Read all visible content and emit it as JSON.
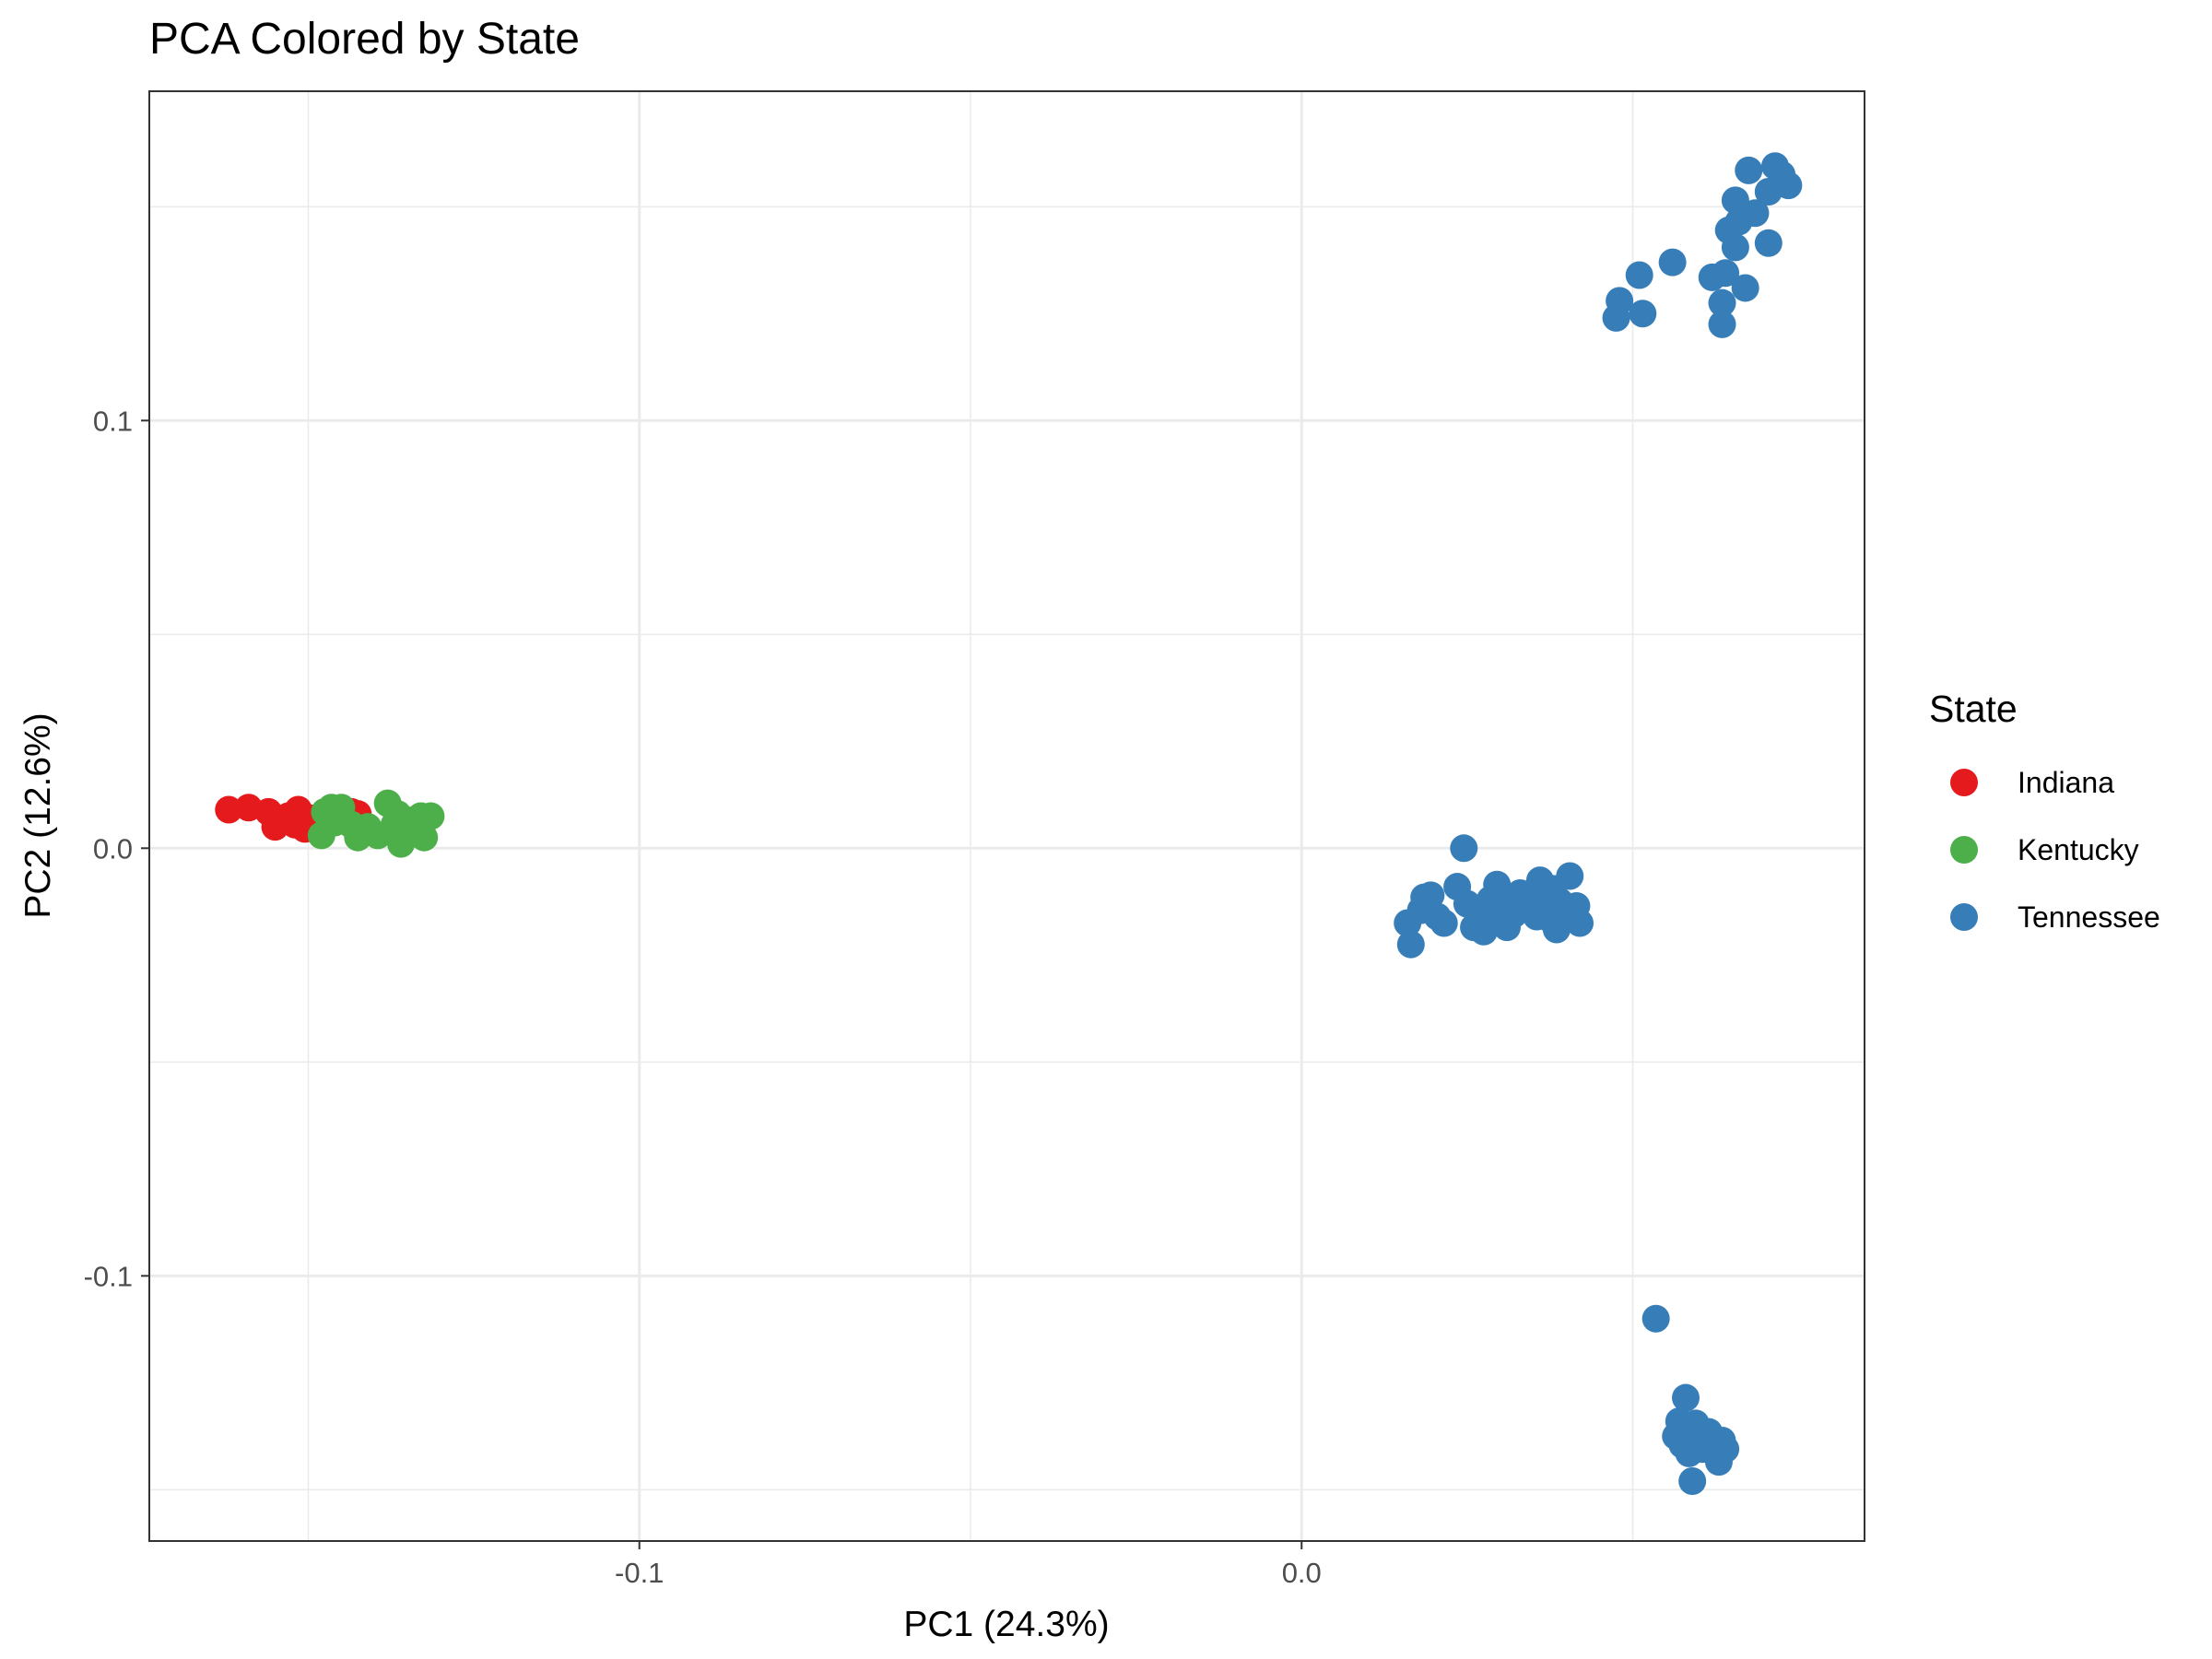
{
  "chart_data": {
    "type": "scatter",
    "title": "PCA Colored by State",
    "xlabel": "PC1 (24.3%)",
    "ylabel": "PC2 (12.6%)",
    "xlim": [
      -0.174,
      0.085
    ],
    "ylim": [
      -0.162,
      0.177
    ],
    "x_ticks": [
      -0.1,
      0.0
    ],
    "x_tick_labels": [
      "-0.1",
      "0.0"
    ],
    "y_ticks": [
      -0.1,
      0.0,
      0.1
    ],
    "y_tick_labels": [
      "-0.1",
      "0.0",
      "0.1"
    ],
    "grid": true,
    "legend": {
      "title": "State",
      "position": "right"
    },
    "series": [
      {
        "name": "Indiana",
        "color": "#E41A1C",
        "points": [
          [
            -0.162,
            0.009
          ],
          [
            -0.159,
            0.0095
          ],
          [
            -0.156,
            0.0085
          ],
          [
            -0.155,
            0.005
          ],
          [
            -0.153,
            0.0075
          ],
          [
            -0.152,
            0.0055
          ],
          [
            -0.1515,
            0.009
          ],
          [
            -0.1505,
            0.0045
          ],
          [
            -0.1495,
            0.007
          ],
          [
            -0.1485,
            0.006
          ],
          [
            -0.1475,
            0.0075
          ],
          [
            -0.1465,
            0.0065
          ],
          [
            -0.1445,
            0.007
          ],
          [
            -0.1435,
            0.0085
          ],
          [
            -0.1425,
            0.008
          ]
        ]
      },
      {
        "name": "Kentucky",
        "color": "#4DAF4A",
        "points": [
          [
            -0.148,
            0.003
          ],
          [
            -0.1475,
            0.0085
          ],
          [
            -0.1465,
            0.0095
          ],
          [
            -0.146,
            0.006
          ],
          [
            -0.145,
            0.0095
          ],
          [
            -0.1435,
            0.0055
          ],
          [
            -0.1425,
            0.0025
          ],
          [
            -0.141,
            0.005
          ],
          [
            -0.1395,
            0.003
          ],
          [
            -0.138,
            0.0105
          ],
          [
            -0.137,
            0.0055
          ],
          [
            -0.1365,
            0.008
          ],
          [
            -0.136,
            0.001
          ],
          [
            -0.1345,
            0.0065
          ],
          [
            -0.133,
            0.0075
          ],
          [
            -0.1325,
            0.0025
          ],
          [
            -0.1315,
            0.0075
          ]
        ]
      },
      {
        "name": "Tennessee",
        "color": "#377EB8",
        "points": [
          [
            0.0475,
            0.124
          ],
          [
            0.048,
            0.128
          ],
          [
            0.051,
            0.134
          ],
          [
            0.0515,
            0.125
          ],
          [
            0.056,
            0.137
          ],
          [
            0.062,
            0.1335
          ],
          [
            0.0635,
            0.1225
          ],
          [
            0.0635,
            0.1275
          ],
          [
            0.064,
            0.1345
          ],
          [
            0.0645,
            0.1445
          ],
          [
            0.0655,
            0.1405
          ],
          [
            0.0655,
            0.1515
          ],
          [
            0.066,
            0.1465
          ],
          [
            0.067,
            0.131
          ],
          [
            0.0675,
            0.1585
          ],
          [
            0.0685,
            0.1485
          ],
          [
            0.0705,
            0.1415
          ],
          [
            0.0705,
            0.1535
          ],
          [
            0.0715,
            0.1595
          ],
          [
            0.0725,
            0.1575
          ],
          [
            0.0735,
            0.155
          ],
          [
            0.016,
            -0.0175
          ],
          [
            0.0165,
            -0.0225
          ],
          [
            0.018,
            -0.0145
          ],
          [
            0.0185,
            -0.0115
          ],
          [
            0.0195,
            -0.011
          ],
          [
            0.0205,
            -0.016
          ],
          [
            0.0215,
            -0.0175
          ],
          [
            0.0235,
            -0.009
          ],
          [
            0.0245,
            0.0
          ],
          [
            0.025,
            -0.013
          ],
          [
            0.026,
            -0.0185
          ],
          [
            0.027,
            -0.0145
          ],
          [
            0.0275,
            -0.0195
          ],
          [
            0.0285,
            -0.012
          ],
          [
            0.029,
            -0.0165
          ],
          [
            0.0295,
            -0.0085
          ],
          [
            0.0305,
            -0.0135
          ],
          [
            0.031,
            -0.0185
          ],
          [
            0.032,
            -0.0155
          ],
          [
            0.033,
            -0.0105
          ],
          [
            0.034,
            -0.0135
          ],
          [
            0.035,
            -0.0115
          ],
          [
            0.0355,
            -0.016
          ],
          [
            0.036,
            -0.0075
          ],
          [
            0.037,
            -0.012
          ],
          [
            0.0375,
            -0.0165
          ],
          [
            0.038,
            -0.0095
          ],
          [
            0.0385,
            -0.019
          ],
          [
            0.039,
            -0.0125
          ],
          [
            0.0395,
            -0.0145
          ],
          [
            0.0405,
            -0.0065
          ],
          [
            0.0415,
            -0.0135
          ],
          [
            0.042,
            -0.0175
          ],
          [
            0.0535,
            -0.11
          ],
          [
            0.0565,
            -0.1375
          ],
          [
            0.057,
            -0.134
          ],
          [
            0.0575,
            -0.1395
          ],
          [
            0.058,
            -0.1285
          ],
          [
            0.0585,
            -0.1415
          ],
          [
            0.059,
            -0.148
          ],
          [
            0.0595,
            -0.1345
          ],
          [
            0.06,
            -0.1375
          ],
          [
            0.0605,
            -0.1405
          ],
          [
            0.0615,
            -0.1365
          ],
          [
            0.062,
            -0.139
          ],
          [
            0.063,
            -0.1435
          ],
          [
            0.0635,
            -0.1385
          ],
          [
            0.064,
            -0.1405
          ]
        ]
      }
    ]
  }
}
